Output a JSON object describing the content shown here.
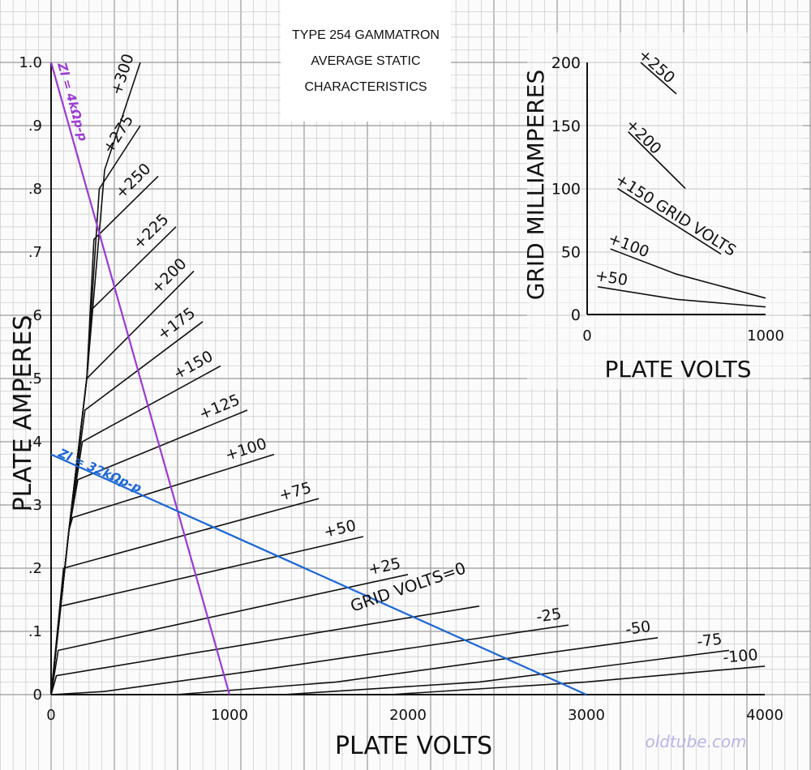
{
  "chart_data": [
    {
      "type": "line",
      "title": [
        "TYPE 254 GAMMATRON",
        "AVERAGE STATIC",
        "CHARACTERISTICS"
      ],
      "xlabel": "PLATE VOLTS",
      "ylabel": "PLATE AMPERES",
      "xlim": [
        0,
        4000
      ],
      "ylim": [
        0,
        1.0
      ],
      "x_ticks": [
        "0",
        "1000",
        "2000",
        "3000",
        "4000"
      ],
      "y_ticks": [
        "0",
        ".1",
        ".2",
        ".3",
        ".4",
        ".5",
        ".6",
        ".7",
        ".8",
        ".9",
        "1.0"
      ],
      "grid": true,
      "grid_legend_label": "GRID VOLTS=0",
      "series": [
        {
          "name": "+300",
          "points": [
            [
              0,
              0
            ],
            [
              100,
              0.26
            ],
            [
              200,
              0.5
            ],
            [
              300,
              0.83
            ],
            [
              500,
              1.0
            ]
          ]
        },
        {
          "name": "+275",
          "points": [
            [
              0,
              0
            ],
            [
              100,
              0.26
            ],
            [
              200,
              0.5
            ],
            [
              270,
              0.8
            ],
            [
              500,
              0.9
            ]
          ]
        },
        {
          "name": "+250",
          "points": [
            [
              0,
              0
            ],
            [
              100,
              0.26
            ],
            [
              200,
              0.5
            ],
            [
              240,
              0.72
            ],
            [
              600,
              0.82
            ]
          ]
        },
        {
          "name": "+225",
          "points": [
            [
              0,
              0
            ],
            [
              100,
              0.26
            ],
            [
              200,
              0.5
            ],
            [
              230,
              0.61
            ],
            [
              700,
              0.74
            ]
          ]
        },
        {
          "name": "+200",
          "points": [
            [
              0,
              0
            ],
            [
              100,
              0.26
            ],
            [
              200,
              0.5
            ],
            [
              800,
              0.67
            ]
          ]
        },
        {
          "name": "+175",
          "points": [
            [
              0,
              0
            ],
            [
              100,
              0.26
            ],
            [
              190,
              0.45
            ],
            [
              850,
              0.59
            ]
          ]
        },
        {
          "name": "+150",
          "points": [
            [
              0,
              0
            ],
            [
              100,
              0.26
            ],
            [
              175,
              0.4
            ],
            [
              950,
              0.52
            ]
          ]
        },
        {
          "name": "+125",
          "points": [
            [
              0,
              0
            ],
            [
              100,
              0.26
            ],
            [
              150,
              0.34
            ],
            [
              1100,
              0.45
            ]
          ]
        },
        {
          "name": "+100",
          "points": [
            [
              0,
              0
            ],
            [
              100,
              0.26
            ],
            [
              120,
              0.28
            ],
            [
              1250,
              0.38
            ]
          ]
        },
        {
          "name": "+75",
          "points": [
            [
              0,
              0
            ],
            [
              70,
              0.2
            ],
            [
              1500,
              0.31
            ]
          ]
        },
        {
          "name": "+50",
          "points": [
            [
              0,
              0
            ],
            [
              55,
              0.14
            ],
            [
              1750,
              0.25
            ]
          ]
        },
        {
          "name": "+25",
          "points": [
            [
              0,
              0
            ],
            [
              40,
              0.07
            ],
            [
              2000,
              0.19
            ]
          ]
        },
        {
          "name": "0",
          "points": [
            [
              0,
              0
            ],
            [
              30,
              0.03
            ],
            [
              2400,
              0.14
            ]
          ]
        },
        {
          "name": "-25",
          "points": [
            [
              0,
              0
            ],
            [
              300,
              0.005
            ],
            [
              1200,
              0.04
            ],
            [
              2900,
              0.11
            ]
          ]
        },
        {
          "name": "-50",
          "points": [
            [
              700,
              0
            ],
            [
              1600,
              0.02
            ],
            [
              3400,
              0.09
            ]
          ]
        },
        {
          "name": "-75",
          "points": [
            [
              1300,
              0
            ],
            [
              2400,
              0.02
            ],
            [
              3800,
              0.07
            ]
          ]
        },
        {
          "name": "-100",
          "points": [
            [
              1900,
              0
            ],
            [
              3000,
              0.02
            ],
            [
              4000,
              0.045
            ]
          ]
        }
      ],
      "load_lines": [
        {
          "name": "Zl = 4kΩp-p",
          "color": "#9b3ad6",
          "points": [
            [
              0,
              1.0
            ],
            [
              1000,
              0
            ]
          ]
        },
        {
          "name": "Zl = 32kΩp-p",
          "color": "#1a66d6",
          "points": [
            [
              0,
              0.38
            ],
            [
              3000,
              0
            ]
          ]
        }
      ]
    },
    {
      "type": "line",
      "title": "",
      "xlabel": "PLATE VOLTS",
      "ylabel": "GRID MILLIAMPERES",
      "xlim": [
        0,
        1000
      ],
      "ylim": [
        0,
        200
      ],
      "x_ticks": [
        "0",
        "1000"
      ],
      "y_ticks": [
        "0",
        "50",
        "100",
        "150",
        "200"
      ],
      "grid": false,
      "series_label_suffix": "GRID VOLTS",
      "series": [
        {
          "name": "+250",
          "points": [
            [
              300,
              200
            ],
            [
              500,
              175
            ]
          ]
        },
        {
          "name": "+200",
          "points": [
            [
              230,
              145
            ],
            [
              550,
              100
            ]
          ]
        },
        {
          "name": "+150",
          "points": [
            [
              170,
              100
            ],
            [
              750,
              48
            ]
          ]
        },
        {
          "name": "+100",
          "points": [
            [
              130,
              52
            ],
            [
              500,
              32
            ],
            [
              1000,
              13
            ]
          ]
        },
        {
          "name": "+50",
          "points": [
            [
              60,
              22
            ],
            [
              500,
              12
            ],
            [
              1000,
              6
            ]
          ]
        }
      ]
    }
  ],
  "watermark": "oldtube.com"
}
